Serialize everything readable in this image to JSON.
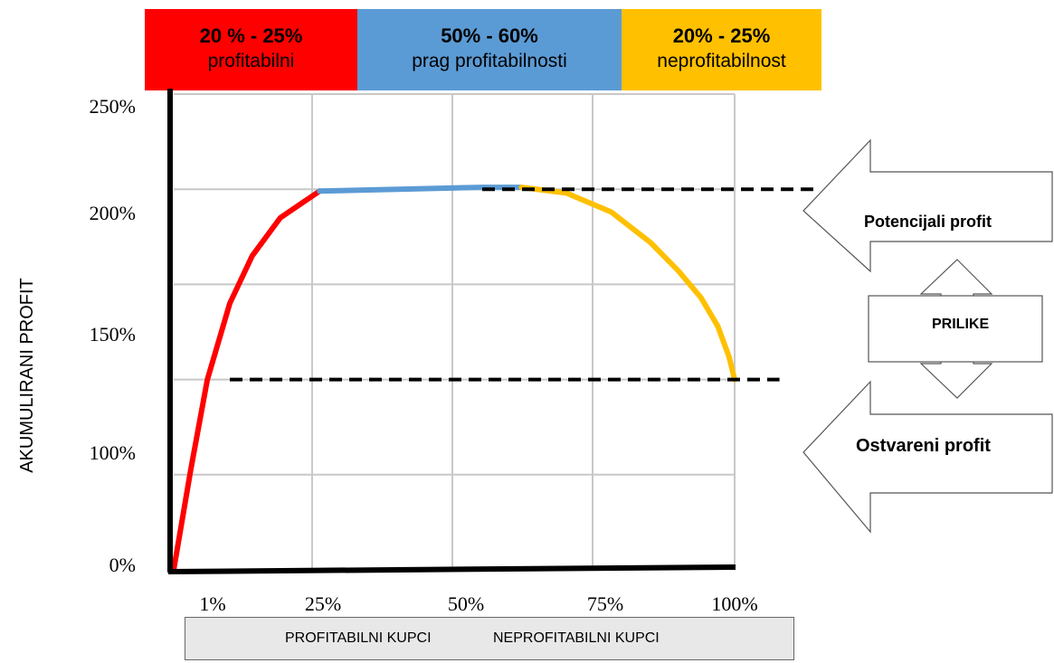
{
  "bands": [
    {
      "pct": "20 % - 25%",
      "label": "profitabilni",
      "color": "#ff0000"
    },
    {
      "pct": "50% - 60%",
      "label": "prag profitabilnosti",
      "color": "#5b9bd5"
    },
    {
      "pct": "20% - 25%",
      "label": "neprofitabilnost",
      "color": "#ffc000"
    }
  ],
  "ylabel": "AKUMULIRANI PROFIT",
  "y_ticks": [
    "250%",
    "200%",
    "150%",
    "100%",
    "0%"
  ],
  "x_ticks": [
    "1%",
    "25%",
    "50%",
    "75%",
    "100%"
  ],
  "x_categories": {
    "left": "PROFITABILNI KUPCI",
    "right": "NEPROFITABILNI KUPCI"
  },
  "arrows": {
    "top": "Potencijali profit",
    "middle": "PRILIKE",
    "bottom": "Ostvareni profit"
  },
  "chart_data": {
    "type": "line",
    "xlabel": "",
    "ylabel": "AKUMULIRANI PROFIT",
    "xlim": [
      0,
      100
    ],
    "ylim": [
      0,
      250
    ],
    "grid": true,
    "series": [
      {
        "color": "#ff0000",
        "x": [
          0,
          3,
          6,
          10,
          14,
          19,
          22,
          26
        ],
        "y": [
          0,
          52,
          100,
          140,
          165,
          185,
          191,
          199
        ]
      },
      {
        "color": "#5b9bd5",
        "x": [
          26,
          40,
          55,
          62
        ],
        "y": [
          199,
          200,
          201,
          201
        ]
      },
      {
        "color": "#ffc000",
        "x": [
          62,
          70,
          78,
          85,
          90,
          94,
          97,
          99,
          100
        ],
        "y": [
          201,
          198,
          188,
          172,
          157,
          143,
          128,
          112,
          100
        ]
      }
    ],
    "reference_lines": [
      {
        "y": 200,
        "x_from": 55,
        "x_to": 115,
        "style": "dashed"
      },
      {
        "y": 100,
        "x_from": 10,
        "x_to": 108,
        "style": "dashed"
      }
    ]
  }
}
